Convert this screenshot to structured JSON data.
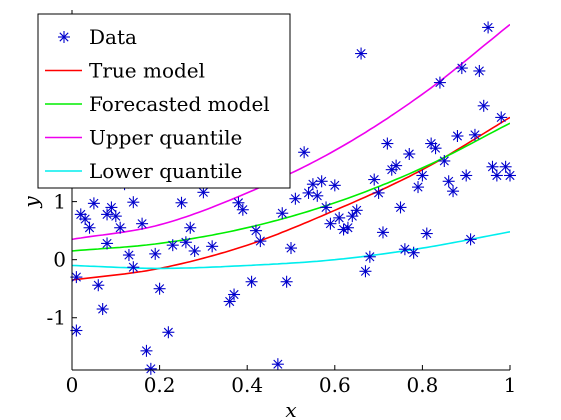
{
  "chart_data": {
    "type": "scatter",
    "title": "",
    "xlabel": "x",
    "ylabel": "y",
    "xlim": [
      0,
      1
    ],
    "ylim": [
      -1.9,
      4.3
    ],
    "grid": false,
    "legend_position": "top-left",
    "x_ticks": [
      {
        "value": 0,
        "label": "0"
      },
      {
        "value": 0.2,
        "label": "0.2"
      },
      {
        "value": 0.4,
        "label": "0.4"
      },
      {
        "value": 0.6,
        "label": "0.6"
      },
      {
        "value": 0.8,
        "label": "0.8"
      },
      {
        "value": 1,
        "label": "1"
      }
    ],
    "y_ticks": [
      {
        "value": -1,
        "label": "-1"
      },
      {
        "value": 0,
        "label": "0"
      },
      {
        "value": 1,
        "label": "1"
      }
    ],
    "series": [
      {
        "name": "Data",
        "kind": "scatter",
        "marker": "asterisk",
        "color": "#0000cc",
        "points": [
          [
            0.01,
            -0.3
          ],
          [
            0.01,
            -1.22
          ],
          [
            0.02,
            0.78
          ],
          [
            0.03,
            0.7
          ],
          [
            0.04,
            0.55
          ],
          [
            0.05,
            0.97
          ],
          [
            0.06,
            -0.44
          ],
          [
            0.07,
            -0.85
          ],
          [
            0.08,
            0.78
          ],
          [
            0.08,
            0.28
          ],
          [
            0.09,
            0.9
          ],
          [
            0.1,
            0.75
          ],
          [
            0.11,
            0.55
          ],
          [
            0.12,
            1.3
          ],
          [
            0.13,
            0.08
          ],
          [
            0.14,
            0.99
          ],
          [
            0.14,
            -0.13
          ],
          [
            0.16,
            0.62
          ],
          [
            0.17,
            -1.57
          ],
          [
            0.18,
            -1.88
          ],
          [
            0.19,
            0.1
          ],
          [
            0.2,
            -0.5
          ],
          [
            0.22,
            -1.25
          ],
          [
            0.23,
            0.25
          ],
          [
            0.25,
            0.98
          ],
          [
            0.26,
            0.3
          ],
          [
            0.27,
            0.55
          ],
          [
            0.28,
            0.15
          ],
          [
            0.3,
            1.16
          ],
          [
            0.32,
            0.23
          ],
          [
            0.34,
            1.4
          ],
          [
            0.36,
            -0.72
          ],
          [
            0.37,
            -0.6
          ],
          [
            0.38,
            0.98
          ],
          [
            0.39,
            0.86
          ],
          [
            0.41,
            -0.38
          ],
          [
            0.42,
            0.5
          ],
          [
            0.43,
            0.32
          ],
          [
            0.45,
            1.4
          ],
          [
            0.47,
            -1.8
          ],
          [
            0.48,
            0.8
          ],
          [
            0.49,
            -0.38
          ],
          [
            0.5,
            0.2
          ],
          [
            0.51,
            1.05
          ],
          [
            0.53,
            1.85
          ],
          [
            0.54,
            1.15
          ],
          [
            0.55,
            1.3
          ],
          [
            0.56,
            1.1
          ],
          [
            0.57,
            1.35
          ],
          [
            0.58,
            0.9
          ],
          [
            0.59,
            0.62
          ],
          [
            0.6,
            1.28
          ],
          [
            0.61,
            0.72
          ],
          [
            0.62,
            0.52
          ],
          [
            0.63,
            0.55
          ],
          [
            0.64,
            0.75
          ],
          [
            0.65,
            0.85
          ],
          [
            0.66,
            3.55
          ],
          [
            0.67,
            -0.2
          ],
          [
            0.68,
            0.05
          ],
          [
            0.69,
            1.38
          ],
          [
            0.7,
            1.15
          ],
          [
            0.71,
            0.47
          ],
          [
            0.72,
            2.0
          ],
          [
            0.73,
            1.55
          ],
          [
            0.74,
            1.62
          ],
          [
            0.75,
            0.9
          ],
          [
            0.76,
            0.18
          ],
          [
            0.77,
            1.82
          ],
          [
            0.78,
            0.12
          ],
          [
            0.79,
            1.25
          ],
          [
            0.8,
            1.45
          ],
          [
            0.81,
            0.45
          ],
          [
            0.82,
            2.0
          ],
          [
            0.83,
            1.92
          ],
          [
            0.84,
            3.05
          ],
          [
            0.85,
            1.7
          ],
          [
            0.86,
            1.35
          ],
          [
            0.87,
            1.18
          ],
          [
            0.88,
            2.13
          ],
          [
            0.89,
            3.3
          ],
          [
            0.9,
            1.45
          ],
          [
            0.91,
            0.35
          ],
          [
            0.92,
            2.15
          ],
          [
            0.93,
            3.25
          ],
          [
            0.94,
            2.65
          ],
          [
            0.95,
            4.0
          ],
          [
            0.96,
            1.6
          ],
          [
            0.97,
            1.45
          ],
          [
            0.98,
            2.45
          ],
          [
            0.99,
            1.6
          ],
          [
            1.0,
            1.45
          ]
        ]
      },
      {
        "name": "True model",
        "kind": "line",
        "color": "#ff0000",
        "x": [
          0,
          0.2,
          0.4,
          0.6,
          0.8,
          1
        ],
        "y": [
          -0.35,
          -0.15,
          0.25,
          0.85,
          1.55,
          2.45
        ]
      },
      {
        "name": "Forecasted model",
        "kind": "line",
        "color": "#00ee00",
        "x": [
          0,
          0.2,
          0.4,
          0.6,
          0.8,
          1
        ],
        "y": [
          0.15,
          0.28,
          0.55,
          0.98,
          1.58,
          2.35
        ]
      },
      {
        "name": "Upper quantile",
        "kind": "line",
        "color": "#ee00ee",
        "x": [
          0,
          0.2,
          0.4,
          0.6,
          0.8,
          1
        ],
        "y": [
          0.35,
          0.6,
          1.15,
          1.88,
          2.85,
          4.05
        ]
      },
      {
        "name": "Lower quantile",
        "kind": "line",
        "color": "#00eeee",
        "x": [
          0,
          0.2,
          0.4,
          0.6,
          0.8,
          1
        ],
        "y": [
          -0.1,
          -0.15,
          -0.1,
          0.0,
          0.2,
          0.48
        ]
      }
    ]
  }
}
